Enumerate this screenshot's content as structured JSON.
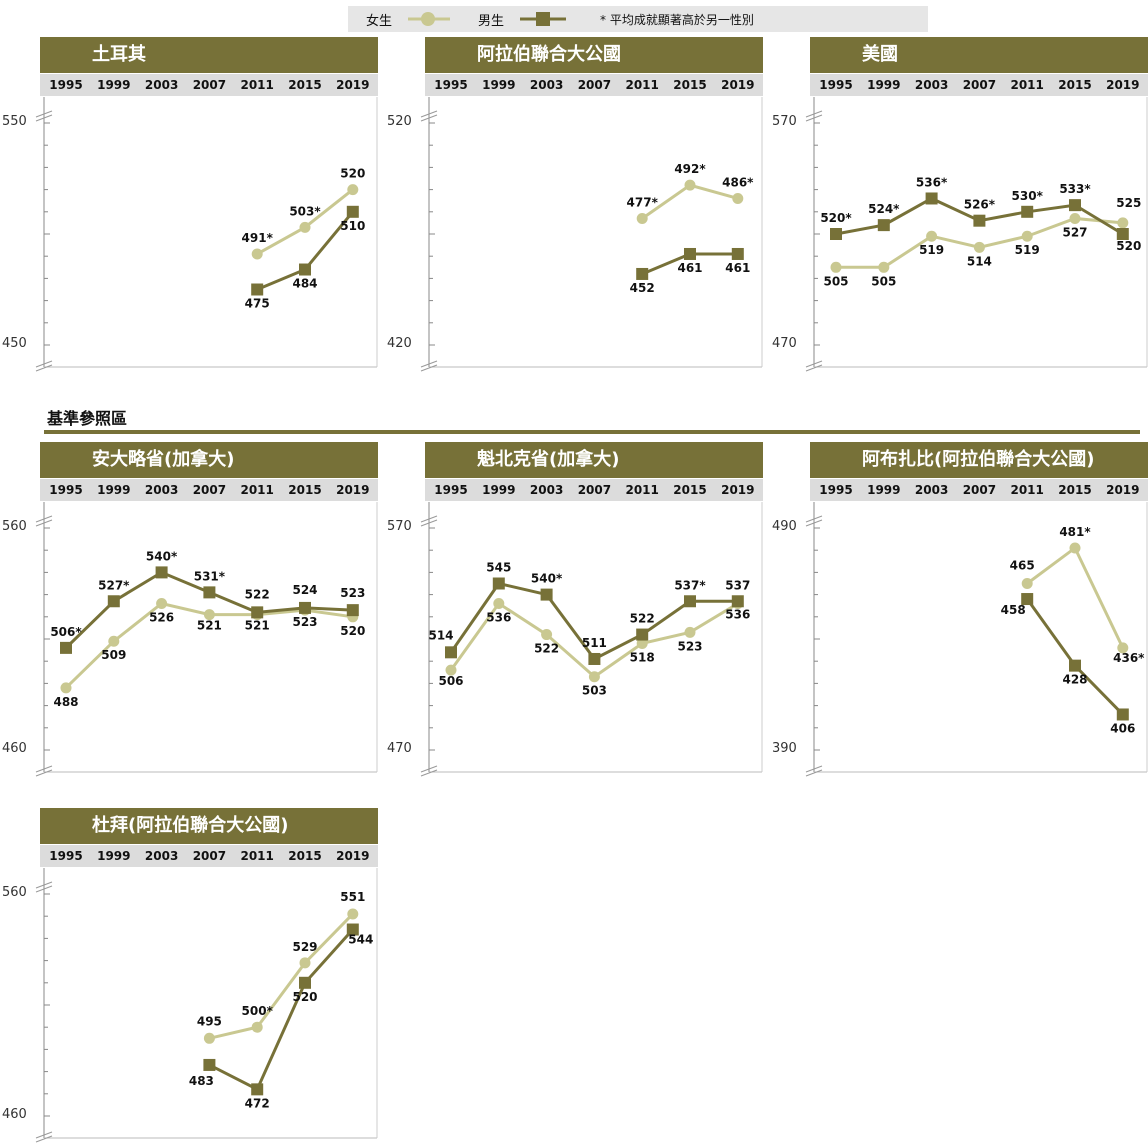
{
  "legend": {
    "female": "女生",
    "male": "男生",
    "note": "* 平均成就顯著高於另一性別"
  },
  "benchmark_heading": "基準參照區",
  "colors": {
    "female": "#c9c891",
    "male": "#777138",
    "title_bg": "#777138",
    "year_bg": "#dcdcdc"
  },
  "chart_data": [
    {
      "type": "line",
      "title": "土耳其",
      "x": [
        "1995",
        "1999",
        "2003",
        "2007",
        "2011",
        "2015",
        "2019"
      ],
      "ylim": [
        450,
        550
      ],
      "series": [
        {
          "name": "女生",
          "values": [
            null,
            null,
            null,
            null,
            491,
            503,
            520
          ],
          "labels": [
            "",
            "",
            "",
            "",
            "491*",
            "503*",
            "520"
          ]
        },
        {
          "name": "男生",
          "values": [
            null,
            null,
            null,
            null,
            475,
            484,
            510
          ],
          "labels": [
            "",
            "",
            "",
            "",
            "475",
            "484",
            "510"
          ]
        }
      ]
    },
    {
      "type": "line",
      "title": "阿拉伯聯合大公國",
      "x": [
        "1995",
        "1999",
        "2003",
        "2007",
        "2011",
        "2015",
        "2019"
      ],
      "ylim": [
        420,
        520
      ],
      "series": [
        {
          "name": "女生",
          "values": [
            null,
            null,
            null,
            null,
            477,
            492,
            486
          ],
          "labels": [
            "",
            "",
            "",
            "",
            "477*",
            "492*",
            "486*"
          ]
        },
        {
          "name": "男生",
          "values": [
            null,
            null,
            null,
            null,
            452,
            461,
            461
          ],
          "labels": [
            "",
            "",
            "",
            "",
            "452",
            "461",
            "461"
          ]
        }
      ]
    },
    {
      "type": "line",
      "title": "美國",
      "x": [
        "1995",
        "1999",
        "2003",
        "2007",
        "2011",
        "2015",
        "2019"
      ],
      "ylim": [
        470,
        570
      ],
      "series": [
        {
          "name": "女生",
          "values": [
            505,
            505,
            519,
            514,
            519,
            527,
            525
          ],
          "labels": [
            "505",
            "505",
            "519",
            "514",
            "519",
            "527",
            "525"
          ]
        },
        {
          "name": "男生",
          "values": [
            520,
            524,
            536,
            526,
            530,
            533,
            520
          ],
          "labels": [
            "520*",
            "524*",
            "536*",
            "526*",
            "530*",
            "533*",
            "520"
          ]
        }
      ]
    },
    {
      "type": "line",
      "title": "安大略省(加拿大)",
      "x": [
        "1995",
        "1999",
        "2003",
        "2007",
        "2011",
        "2015",
        "2019"
      ],
      "ylim": [
        460,
        560
      ],
      "series": [
        {
          "name": "女生",
          "values": [
            488,
            509,
            526,
            521,
            521,
            523,
            520
          ],
          "labels": [
            "488",
            "509",
            "526",
            "521",
            "521",
            "523",
            "520"
          ]
        },
        {
          "name": "男生",
          "values": [
            506,
            527,
            540,
            531,
            522,
            524,
            523
          ],
          "labels": [
            "506*",
            "527*",
            "540*",
            "531*",
            "522",
            "524",
            "523"
          ]
        }
      ]
    },
    {
      "type": "line",
      "title": "魁北克省(加拿大)",
      "x": [
        "1995",
        "1999",
        "2003",
        "2007",
        "2011",
        "2015",
        "2019"
      ],
      "ylim": [
        470,
        570
      ],
      "series": [
        {
          "name": "女生",
          "values": [
            506,
            536,
            522,
            503,
            518,
            523,
            536
          ],
          "labels": [
            "506",
            "536",
            "522",
            "503",
            "518",
            "523",
            "536"
          ]
        },
        {
          "name": "男生",
          "values": [
            514,
            545,
            540,
            511,
            522,
            537,
            537
          ],
          "labels": [
            "514",
            "545",
            "540*",
            "511",
            "522",
            "537*",
            "537"
          ]
        }
      ]
    },
    {
      "type": "line",
      "title": "阿布扎比(阿拉伯聯合大公國)",
      "x": [
        "1995",
        "1999",
        "2003",
        "2007",
        "2011",
        "2015",
        "2019"
      ],
      "ylim": [
        390,
        490
      ],
      "series": [
        {
          "name": "女生",
          "values": [
            null,
            null,
            null,
            null,
            465,
            481,
            436
          ],
          "labels": [
            "",
            "",
            "",
            "",
            "465",
            "481*",
            "436*"
          ]
        },
        {
          "name": "男生",
          "values": [
            null,
            null,
            null,
            null,
            458,
            428,
            406
          ],
          "labels": [
            "",
            "",
            "",
            "",
            "458",
            "428",
            "406"
          ]
        }
      ]
    },
    {
      "type": "line",
      "title": "杜拜(阿拉伯聯合大公國)",
      "x": [
        "1995",
        "1999",
        "2003",
        "2007",
        "2011",
        "2015",
        "2019"
      ],
      "ylim": [
        460,
        560
      ],
      "series": [
        {
          "name": "女生",
          "values": [
            null,
            null,
            null,
            495,
            500,
            529,
            551
          ],
          "labels": [
            "",
            "",
            "",
            "495",
            "500*",
            "529",
            "551"
          ]
        },
        {
          "name": "男生",
          "values": [
            null,
            null,
            null,
            483,
            472,
            520,
            544
          ],
          "labels": [
            "",
            "",
            "",
            "483",
            "472",
            "520",
            "544"
          ]
        }
      ]
    }
  ]
}
